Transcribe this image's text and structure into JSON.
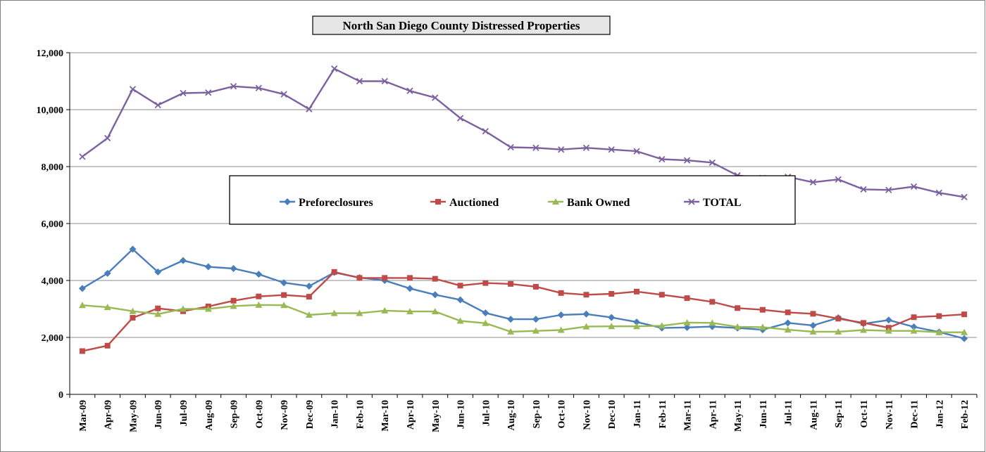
{
  "chart_data": {
    "type": "line",
    "title": "North San Diego County Distressed Properties",
    "xlabel": "",
    "ylabel": "",
    "ylim": [
      0,
      12000
    ],
    "y_ticks": [
      "0",
      "2,000",
      "4,000",
      "6,000",
      "8,000",
      "10,000",
      "12,000"
    ],
    "y_tick_values": [
      0,
      2000,
      4000,
      6000,
      8000,
      10000,
      12000
    ],
    "grid": true,
    "legend_position": "center",
    "categories": [
      "Mar-09",
      "Apr-09",
      "May-09",
      "Jun-09",
      "Jul-09",
      "Aug-09",
      "Sep-09",
      "Oct-09",
      "Nov-09",
      "Dec-09",
      "Jan-10",
      "Feb-10",
      "Mar-10",
      "Apr-10",
      "May-10",
      "Jun-10",
      "Jul-10",
      "Aug-10",
      "Sep-10",
      "Oct-10",
      "Nov-10",
      "Dec-10",
      "Jan-11",
      "Feb-11",
      "Mar-11",
      "Apr-11",
      "May-11",
      "Jun-11",
      "Jul-11",
      "Aug-11",
      "Sep-11",
      "Oct-11",
      "Nov-11",
      "Dec-11",
      "Jan-12",
      "Feb-12"
    ],
    "series": [
      {
        "name": "Preforeclosures",
        "color": "#4a7ebb",
        "marker": "diamond",
        "values": [
          3720,
          4250,
          5100,
          4300,
          4700,
          4480,
          4420,
          4220,
          3920,
          3800,
          4280,
          4100,
          4000,
          3720,
          3500,
          3320,
          2860,
          2640,
          2640,
          2790,
          2820,
          2700,
          2540,
          2330,
          2350,
          2380,
          2330,
          2270,
          2510,
          2420,
          2690,
          2480,
          2610,
          2370,
          2190,
          1960
        ]
      },
      {
        "name": "Auctioned",
        "color": "#be4b48",
        "marker": "square",
        "values": [
          1520,
          1710,
          2690,
          3020,
          2920,
          3090,
          3290,
          3440,
          3490,
          3430,
          4300,
          4090,
          4090,
          4090,
          4060,
          3820,
          3910,
          3880,
          3780,
          3560,
          3500,
          3530,
          3610,
          3500,
          3380,
          3250,
          3030,
          2970,
          2880,
          2830,
          2660,
          2510,
          2340,
          2710,
          2750,
          2810
        ]
      },
      {
        "name": "Bank Owned",
        "color": "#98b954",
        "marker": "triangle",
        "values": [
          3130,
          3060,
          2920,
          2820,
          3000,
          3000,
          3100,
          3140,
          3130,
          2790,
          2850,
          2850,
          2940,
          2910,
          2910,
          2580,
          2500,
          2200,
          2230,
          2260,
          2380,
          2390,
          2390,
          2410,
          2520,
          2510,
          2370,
          2360,
          2270,
          2200,
          2200,
          2260,
          2230,
          2230,
          2180,
          2180
        ]
      },
      {
        "name": "TOTAL",
        "color": "#7d60a0",
        "marker": "x",
        "values": [
          8350,
          9000,
          10720,
          10160,
          10580,
          10600,
          10820,
          10760,
          10540,
          10020,
          11440,
          11000,
          11000,
          10660,
          10420,
          9700,
          9240,
          8680,
          8660,
          8600,
          8660,
          8600,
          8540,
          8260,
          8220,
          8140,
          7690,
          7600,
          7640,
          7450,
          7550,
          7200,
          7180,
          7300,
          7080,
          6930
        ]
      }
    ]
  }
}
